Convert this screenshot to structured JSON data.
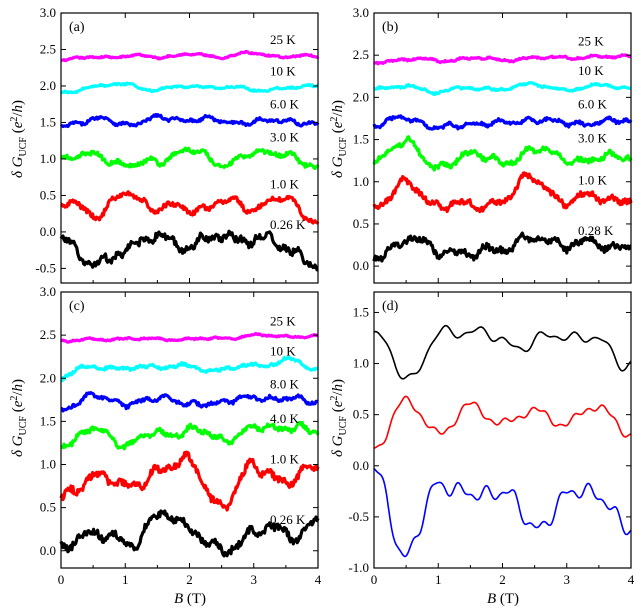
{
  "figure": {
    "x_title_var": "B",
    "x_title_unit": " (T)",
    "y_title": "δ G_UCF (e²/h)"
  },
  "chart_data": [
    {
      "type": "line",
      "panel": "(a)",
      "xlim": [
        0,
        4
      ],
      "ylim": [
        -0.7,
        3.0
      ],
      "xticks": [
        "0",
        "1",
        "2",
        "3",
        "4"
      ],
      "yticks": [
        "3.0",
        "2.5",
        "2.0",
        "1.5",
        "1.0",
        "0.5",
        "0.0",
        "-0.5"
      ],
      "ytick_values": [
        3.0,
        2.5,
        2.0,
        1.5,
        1.0,
        0.5,
        0.0,
        -0.5
      ],
      "series": [
        {
          "name": "25 K",
          "color": "#ff00ff",
          "offset": 2.38,
          "amp": 0.05,
          "x": [
            0,
            0.5,
            1.0,
            1.5,
            2.0,
            2.5,
            3.0,
            3.5,
            4.0
          ],
          "values": [
            2.36,
            2.39,
            2.41,
            2.4,
            2.43,
            2.4,
            2.45,
            2.4,
            2.41
          ]
        },
        {
          "name": "10 K",
          "color": "#00ffff",
          "offset": 1.95,
          "amp": 0.06,
          "x": [
            0,
            0.5,
            1.0,
            1.5,
            2.0,
            2.5,
            3.0,
            3.5,
            4.0
          ],
          "values": [
            1.92,
            1.98,
            2.03,
            1.94,
            2.0,
            1.98,
            1.95,
            1.97,
            1.99
          ]
        },
        {
          "name": "6.0 K",
          "color": "#0000ff",
          "offset": 1.5,
          "amp": 0.1,
          "x": [
            0,
            0.5,
            1.0,
            1.5,
            2.0,
            2.5,
            3.0,
            3.5,
            4.0
          ],
          "values": [
            1.45,
            1.55,
            1.48,
            1.55,
            1.55,
            1.52,
            1.5,
            1.54,
            1.45
          ]
        },
        {
          "name": "3.0 K",
          "color": "#00ff00",
          "offset": 1.05,
          "amp": 0.15,
          "x": [
            0,
            0.5,
            1.0,
            1.5,
            2.0,
            2.5,
            3.0,
            3.5,
            4.0
          ],
          "values": [
            0.95,
            1.1,
            0.88,
            1.0,
            1.1,
            0.95,
            1.05,
            1.1,
            0.85
          ]
        },
        {
          "name": "1.0 K",
          "color": "#ff0000",
          "offset": 0.4,
          "amp": 0.18,
          "x": [
            0,
            0.5,
            1.0,
            1.5,
            2.0,
            2.5,
            3.0,
            3.5,
            4.0
          ],
          "values": [
            0.4,
            0.25,
            0.5,
            0.35,
            0.3,
            0.4,
            0.35,
            0.45,
            0.15
          ]
        },
        {
          "name": "0.26 K",
          "color": "#000000",
          "offset": -0.15,
          "amp": 0.25,
          "x": [
            0,
            0.5,
            1.0,
            1.5,
            2.0,
            2.5,
            3.0,
            3.5,
            4.0
          ],
          "values": [
            -0.05,
            -0.5,
            -0.2,
            -0.1,
            -0.15,
            -0.1,
            -0.05,
            -0.25,
            -0.4
          ]
        }
      ]
    },
    {
      "type": "line",
      "panel": "(b)",
      "xlim": [
        0,
        4
      ],
      "ylim": [
        -0.2,
        3.0
      ],
      "xticks": [
        "0",
        "1",
        "2",
        "3",
        "4"
      ],
      "yticks": [
        "3.0",
        "2.5",
        "2.0",
        "1.5",
        "1.0",
        "0.5",
        "0.0"
      ],
      "ytick_values": [
        3.0,
        2.5,
        2.0,
        1.5,
        1.0,
        0.5,
        0.0
      ],
      "series": [
        {
          "name": "25 K",
          "color": "#ff00ff",
          "offset": 2.45,
          "amp": 0.05,
          "x": [
            0,
            0.5,
            1.0,
            1.5,
            2.0,
            2.5,
            3.0,
            3.5,
            4.0
          ],
          "values": [
            2.42,
            2.45,
            2.44,
            2.46,
            2.45,
            2.46,
            2.48,
            2.47,
            2.5
          ]
        },
        {
          "name": "10 K",
          "color": "#00ffff",
          "offset": 2.1,
          "amp": 0.06,
          "x": [
            0,
            0.5,
            1.0,
            1.5,
            2.0,
            2.5,
            3.0,
            3.5,
            4.0
          ],
          "values": [
            2.08,
            2.15,
            2.05,
            2.12,
            2.1,
            2.15,
            2.1,
            2.13,
            2.12
          ]
        },
        {
          "name": "6.0 K",
          "color": "#0000ff",
          "offset": 1.7,
          "amp": 0.1,
          "x": [
            0,
            0.5,
            1.0,
            1.5,
            2.0,
            2.5,
            3.0,
            3.5,
            4.0
          ],
          "values": [
            1.65,
            1.78,
            1.62,
            1.7,
            1.68,
            1.75,
            1.68,
            1.72,
            1.7
          ]
        },
        {
          "name": "3.0 K",
          "color": "#00ff00",
          "offset": 1.3,
          "amp": 0.15,
          "x": [
            0,
            0.5,
            1.0,
            1.5,
            2.0,
            2.5,
            3.0,
            3.5,
            4.0
          ],
          "values": [
            1.25,
            1.45,
            1.2,
            1.3,
            1.25,
            1.38,
            1.25,
            1.3,
            1.25
          ]
        },
        {
          "name": "1.0 K",
          "color": "#ff0000",
          "offset": 0.8,
          "amp": 0.18,
          "x": [
            0,
            0.5,
            1.0,
            1.5,
            2.0,
            2.5,
            3.0,
            3.5,
            4.0
          ],
          "values": [
            0.75,
            0.95,
            0.75,
            0.7,
            0.8,
            1.05,
            0.75,
            0.85,
            0.75
          ]
        },
        {
          "name": "0.28 K",
          "color": "#000000",
          "offset": 0.2,
          "amp": 0.2,
          "x": [
            0,
            0.5,
            1.0,
            1.5,
            2.0,
            2.5,
            3.0,
            3.5,
            4.0
          ],
          "values": [
            0.1,
            0.35,
            0.15,
            0.2,
            0.15,
            0.4,
            0.2,
            0.3,
            0.2
          ]
        }
      ]
    },
    {
      "type": "line",
      "panel": "(c)",
      "xlim": [
        0,
        4
      ],
      "ylim": [
        -0.2,
        3.0
      ],
      "xticks": [
        "0",
        "1",
        "2",
        "3",
        "4"
      ],
      "yticks": [
        "3.0",
        "2.5",
        "2.0",
        "1.5",
        "1.0",
        "0.5",
        "0.0"
      ],
      "ytick_values": [
        3.0,
        2.5,
        2.0,
        1.5,
        1.0,
        0.5,
        0.0
      ],
      "series": [
        {
          "name": "25 K",
          "color": "#ff00ff",
          "offset": 2.45,
          "amp": 0.04,
          "x": [
            0,
            0.5,
            1.0,
            1.5,
            2.0,
            2.5,
            3.0,
            3.5,
            4.0
          ],
          "values": [
            2.42,
            2.46,
            2.45,
            2.46,
            2.45,
            2.46,
            2.5,
            2.48,
            2.5
          ]
        },
        {
          "name": "10 K",
          "color": "#00ffff",
          "offset": 2.1,
          "amp": 0.08,
          "x": [
            0,
            0.5,
            1.0,
            1.5,
            2.0,
            2.5,
            3.0,
            3.5,
            4.0
          ],
          "values": [
            2.0,
            2.15,
            2.1,
            2.15,
            2.12,
            2.1,
            2.15,
            2.2,
            2.12
          ]
        },
        {
          "name": "8.0 K",
          "color": "#0000ff",
          "offset": 1.72,
          "amp": 0.1,
          "x": [
            0,
            0.5,
            1.0,
            1.5,
            2.0,
            2.5,
            3.0,
            3.5,
            4.0
          ],
          "values": [
            1.65,
            1.78,
            1.72,
            1.75,
            1.72,
            1.7,
            1.8,
            1.75,
            1.73
          ]
        },
        {
          "name": "4.0 K",
          "color": "#00ff00",
          "offset": 1.32,
          "amp": 0.14,
          "x": [
            0,
            0.5,
            1.0,
            1.5,
            2.0,
            2.5,
            3.0,
            3.5,
            4.0
          ],
          "values": [
            1.25,
            1.4,
            1.25,
            1.35,
            1.4,
            1.3,
            1.4,
            1.45,
            1.35
          ]
        },
        {
          "name": "1.0 K",
          "color": "#ff0000",
          "offset": 0.85,
          "amp": 0.22,
          "x": [
            0,
            0.5,
            1.0,
            1.5,
            2.0,
            2.5,
            3.0,
            3.5,
            4.0
          ],
          "values": [
            0.6,
            0.9,
            0.7,
            0.95,
            1.0,
            0.55,
            0.95,
            0.85,
            0.9
          ]
        },
        {
          "name": "0.26 K",
          "color": "#000000",
          "offset": 0.15,
          "amp": 0.22,
          "x": [
            0,
            0.5,
            1.0,
            1.5,
            2.0,
            2.5,
            3.0,
            3.5,
            4.0
          ],
          "values": [
            0.0,
            0.25,
            0.05,
            0.4,
            0.3,
            -0.05,
            0.25,
            0.2,
            0.3
          ]
        }
      ]
    },
    {
      "type": "line",
      "panel": "(d)",
      "xlim": [
        0,
        4
      ],
      "ylim": [
        -1.0,
        1.7
      ],
      "xticks": [
        "0",
        "1",
        "2",
        "3",
        "4"
      ],
      "yticks": [
        "1.5",
        "1.0",
        "0.5",
        "0.0",
        "-0.5",
        "-1.0"
      ],
      "ytick_values": [
        1.5,
        1.0,
        0.5,
        0.0,
        -0.5,
        -1.0
      ],
      "series": [
        {
          "color": "#000000",
          "offset": 1.2,
          "amp": 0.2,
          "x": [
            0,
            0.5,
            1.0,
            1.5,
            2.0,
            2.5,
            3.0,
            3.5,
            4.0
          ],
          "values": [
            1.3,
            0.85,
            1.25,
            1.35,
            1.2,
            1.2,
            1.3,
            1.2,
            1.0
          ]
        },
        {
          "color": "#ff0000",
          "offset": 0.45,
          "amp": 0.17,
          "x": [
            0,
            0.5,
            1.0,
            1.5,
            2.0,
            2.5,
            3.0,
            3.5,
            4.0
          ],
          "values": [
            0.22,
            0.6,
            0.35,
            0.55,
            0.45,
            0.5,
            0.45,
            0.55,
            0.35
          ]
        },
        {
          "color": "#0000ff",
          "offset": -0.35,
          "amp": 0.28,
          "x": [
            0,
            0.5,
            1.0,
            1.5,
            2.0,
            2.5,
            3.0,
            3.5,
            4.0
          ],
          "values": [
            0.0,
            -0.85,
            -0.25,
            -0.2,
            -0.3,
            -0.6,
            -0.25,
            -0.35,
            -0.55
          ]
        }
      ]
    }
  ]
}
